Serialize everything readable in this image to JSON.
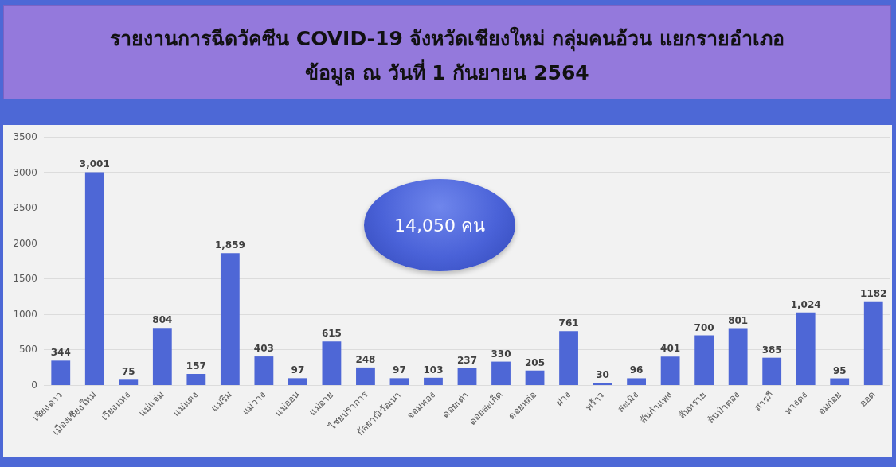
{
  "chart_data": {
    "type": "bar",
    "title": "รายงานการฉีดวัคซีน COVID-19 จังหวัดเชียงใหม่ กลุ่มคนอ้วน แยกรายอำเภอ",
    "subtitle": "ข้อมูล ณ วันที่ 1 กันยายน 2564",
    "categories": [
      "เชียงดาว",
      "เมืองเชียงใหม่",
      "เวียงแหง",
      "แม่แจ่ม",
      "แม่แตง",
      "แม่ริม",
      "แม่วาง",
      "แม่ออน",
      "แม่อาย",
      "ไชยปราการ",
      "กัลยาณิวัฒนา",
      "จอมทอง",
      "ดอยเต่า",
      "ดอยสะเก็ด",
      "ดอยหล่อ",
      "ฝาง",
      "พร้าว",
      "สะเมิง",
      "สันกำแพง",
      "สันทราย",
      "สันป่าตอง",
      "สารภี",
      "หางดง",
      "อมก๋อย",
      "ฮอด"
    ],
    "values": [
      344,
      3001,
      75,
      804,
      157,
      1859,
      403,
      97,
      615,
      248,
      97,
      103,
      237,
      330,
      205,
      761,
      30,
      96,
      401,
      700,
      801,
      385,
      1024,
      95,
      1182
    ],
    "value_labels": [
      "344",
      "3,001",
      "75",
      "804",
      "157",
      "1,859",
      "403",
      "97",
      "615",
      "248",
      "97",
      "103",
      "237",
      "330",
      "205",
      "761",
      "30",
      "96",
      "401",
      "700",
      "801",
      "385",
      "1,024",
      "95",
      "1182"
    ],
    "color": "#4e67d6",
    "ylim": [
      0,
      3500
    ],
    "yticks": [
      0,
      500,
      1000,
      1500,
      2000,
      2500,
      3000,
      3500
    ],
    "grid": "y",
    "annotations": [
      "14,050 คน"
    ]
  }
}
